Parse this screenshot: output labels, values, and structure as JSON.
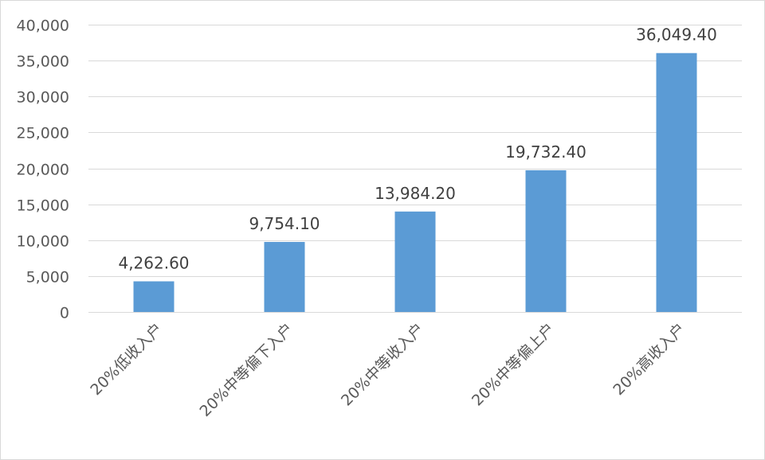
{
  "chart_data": {
    "type": "bar",
    "title": "",
    "xlabel": "",
    "ylabel": "",
    "categories": [
      "20%低收入户",
      "20%中等偏下入户",
      "20%中等收入户",
      "20%中等偏上户",
      "20%高收入户"
    ],
    "values": [
      4262.6,
      9754.1,
      13984.2,
      19732.4,
      36049.4
    ],
    "data_labels": [
      "4,262.60",
      "9,754.10",
      "13,984.20",
      "19,732.40",
      "36,049.40"
    ],
    "ylim": [
      0,
      40000
    ],
    "yticks": [
      0,
      5000,
      10000,
      15000,
      20000,
      25000,
      30000,
      35000,
      40000
    ],
    "ytick_labels": [
      "0",
      "5,000",
      "10,000",
      "15,000",
      "20,000",
      "25,000",
      "30,000",
      "35,000",
      "40,000"
    ],
    "grid": true,
    "legend": "none",
    "bar_color": "#5b9bd5"
  }
}
